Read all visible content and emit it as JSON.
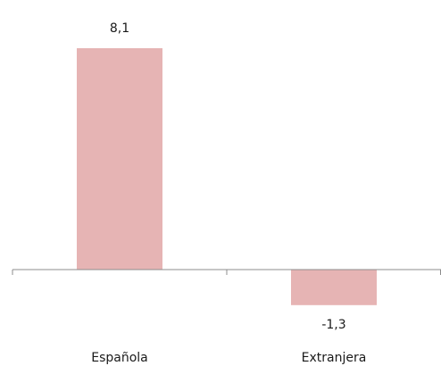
{
  "chart_data": {
    "type": "bar",
    "categories": [
      "Española",
      "Extranjera"
    ],
    "values": [
      8.1,
      -1.3
    ],
    "data_labels": [
      "8,1",
      "-1,3"
    ],
    "title": "",
    "xlabel": "",
    "ylabel": "",
    "ylim": [
      -1.3,
      8.1
    ],
    "grid": false,
    "legend": "none",
    "bar_color": "#e6b4b4",
    "axis_color": "#8c8c8c"
  }
}
